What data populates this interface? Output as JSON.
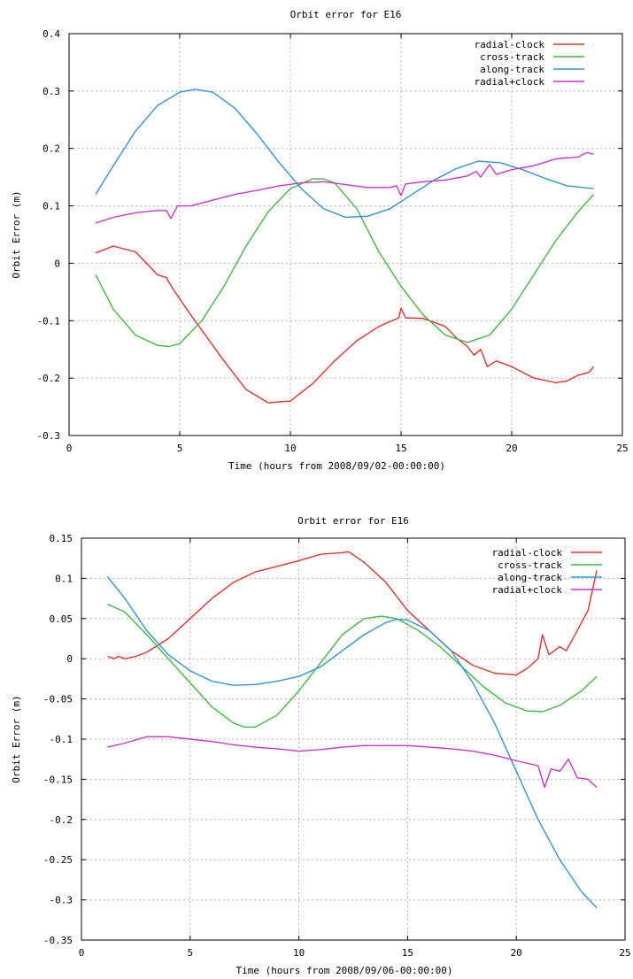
{
  "colors": {
    "radial_clock": "#e8302a",
    "cross_track": "#3dbb3d",
    "along_track": "#2f93e0",
    "radial_plus_clock": "#cc33cc"
  },
  "chart_data": [
    {
      "type": "line",
      "title": "Orbit error for E16",
      "xlabel": "Time (hours from 2008/09/02-00:00:00)",
      "ylabel": "Orbit Error (m)",
      "xlim": [
        0,
        25
      ],
      "ylim": [
        -0.3,
        0.4
      ],
      "xticks": [
        0,
        5,
        10,
        15,
        20,
        25
      ],
      "xtick_labels": [
        "0",
        "5",
        "10",
        "15",
        "20",
        "25"
      ],
      "yticks": [
        -0.3,
        -0.2,
        -0.1,
        0,
        0.1,
        0.2,
        0.3,
        0.4
      ],
      "ytick_labels": [
        "-0.3",
        "-0.2",
        "-0.1",
        "0",
        "0.1",
        "0.2",
        "0.3",
        "0.4"
      ],
      "grid": true,
      "legend_position": "top-right",
      "series": [
        {
          "name": "radial-clock",
          "color_key": "radial_clock",
          "points": [
            [
              1.2,
              0.018
            ],
            [
              2,
              0.03
            ],
            [
              3,
              0.02
            ],
            [
              3.5,
              0.0
            ],
            [
              4,
              -0.02
            ],
            [
              4.4,
              -0.025
            ],
            [
              4.7,
              -0.045
            ],
            [
              5.5,
              -0.09
            ],
            [
              7,
              -0.17
            ],
            [
              8,
              -0.22
            ],
            [
              9,
              -0.243
            ],
            [
              10,
              -0.24
            ],
            [
              11,
              -0.21
            ],
            [
              12,
              -0.17
            ],
            [
              13,
              -0.135
            ],
            [
              14,
              -0.11
            ],
            [
              14.9,
              -0.095
            ],
            [
              15,
              -0.078
            ],
            [
              15.2,
              -0.095
            ],
            [
              16,
              -0.096
            ],
            [
              17,
              -0.11
            ],
            [
              17.5,
              -0.13
            ],
            [
              18,
              -0.145
            ],
            [
              18.3,
              -0.16
            ],
            [
              18.6,
              -0.15
            ],
            [
              18.9,
              -0.18
            ],
            [
              19.3,
              -0.17
            ],
            [
              20,
              -0.18
            ],
            [
              21,
              -0.2
            ],
            [
              22,
              -0.208
            ],
            [
              22.5,
              -0.205
            ],
            [
              23,
              -0.195
            ],
            [
              23.5,
              -0.19
            ],
            [
              23.7,
              -0.18
            ]
          ]
        },
        {
          "name": "cross-track",
          "color_key": "cross_track",
          "points": [
            [
              1.2,
              -0.02
            ],
            [
              2,
              -0.08
            ],
            [
              3,
              -0.125
            ],
            [
              4,
              -0.143
            ],
            [
              4.5,
              -0.145
            ],
            [
              5,
              -0.14
            ],
            [
              6,
              -0.1
            ],
            [
              7,
              -0.04
            ],
            [
              8,
              0.03
            ],
            [
              9,
              0.09
            ],
            [
              10,
              0.13
            ],
            [
              11,
              0.147
            ],
            [
              11.5,
              0.147
            ],
            [
              12,
              0.14
            ],
            [
              13,
              0.095
            ],
            [
              14,
              0.02
            ],
            [
              15,
              -0.04
            ],
            [
              16,
              -0.09
            ],
            [
              17,
              -0.125
            ],
            [
              18,
              -0.138
            ],
            [
              19,
              -0.125
            ],
            [
              20,
              -0.08
            ],
            [
              21,
              -0.02
            ],
            [
              22,
              0.04
            ],
            [
              23,
              0.09
            ],
            [
              23.7,
              0.12
            ]
          ]
        },
        {
          "name": "along-track",
          "color_key": "along_track",
          "points": [
            [
              1.2,
              0.12
            ],
            [
              2,
              0.17
            ],
            [
              3,
              0.23
            ],
            [
              4,
              0.275
            ],
            [
              5,
              0.298
            ],
            [
              5.7,
              0.303
            ],
            [
              6.5,
              0.298
            ],
            [
              7.5,
              0.27
            ],
            [
              8.5,
              0.225
            ],
            [
              9.5,
              0.175
            ],
            [
              10.5,
              0.13
            ],
            [
              11.5,
              0.095
            ],
            [
              12.5,
              0.08
            ],
            [
              13.5,
              0.082
            ],
            [
              14.5,
              0.095
            ],
            [
              15.5,
              0.12
            ],
            [
              16.5,
              0.145
            ],
            [
              17.5,
              0.165
            ],
            [
              18.5,
              0.178
            ],
            [
              19.5,
              0.175
            ],
            [
              20.5,
              0.163
            ],
            [
              21.5,
              0.148
            ],
            [
              22.5,
              0.135
            ],
            [
              23.7,
              0.13
            ]
          ]
        },
        {
          "name": "radial+clock",
          "color_key": "radial_plus_clock",
          "points": [
            [
              1.2,
              0.07
            ],
            [
              2,
              0.08
            ],
            [
              3,
              0.088
            ],
            [
              4,
              0.092
            ],
            [
              4.4,
              0.092
            ],
            [
              4.6,
              0.078
            ],
            [
              4.9,
              0.1
            ],
            [
              5.5,
              0.1
            ],
            [
              6.5,
              0.11
            ],
            [
              7.5,
              0.12
            ],
            [
              8.5,
              0.127
            ],
            [
              9.5,
              0.135
            ],
            [
              10.5,
              0.14
            ],
            [
              11.5,
              0.142
            ],
            [
              12.5,
              0.137
            ],
            [
              13.5,
              0.132
            ],
            [
              14.5,
              0.132
            ],
            [
              14.8,
              0.135
            ],
            [
              15,
              0.118
            ],
            [
              15.2,
              0.138
            ],
            [
              16,
              0.142
            ],
            [
              17,
              0.145
            ],
            [
              18,
              0.152
            ],
            [
              18.4,
              0.16
            ],
            [
              18.6,
              0.15
            ],
            [
              19,
              0.172
            ],
            [
              19.3,
              0.155
            ],
            [
              20,
              0.163
            ],
            [
              21,
              0.17
            ],
            [
              22,
              0.182
            ],
            [
              23,
              0.185
            ],
            [
              23.4,
              0.193
            ],
            [
              23.7,
              0.19
            ]
          ]
        }
      ]
    },
    {
      "type": "line",
      "title": "Orbit error for E16",
      "xlabel": "Time (hours from 2008/09/06-00:00:00)",
      "ylabel": "Orbit Error (m)",
      "xlim": [
        0,
        25
      ],
      "ylim": [
        -0.35,
        0.15
      ],
      "xticks": [
        0,
        5,
        10,
        15,
        20,
        25
      ],
      "xtick_labels": [
        "0",
        "5",
        "10",
        "15",
        "20",
        "25"
      ],
      "yticks": [
        -0.35,
        -0.3,
        -0.25,
        -0.2,
        -0.15,
        -0.1,
        -0.05,
        0,
        0.05,
        0.1,
        0.15
      ],
      "ytick_labels": [
        "-0.35",
        "-0.3",
        "-0.25",
        "-0.2",
        "-0.15",
        "-0.1",
        "-0.05",
        "0",
        "0.05",
        "0.1",
        "0.15"
      ],
      "grid": true,
      "legend_position": "top-right",
      "series": [
        {
          "name": "radial-clock",
          "color_key": "radial_clock",
          "points": [
            [
              1.2,
              0.003
            ],
            [
              1.5,
              0.0
            ],
            [
              1.7,
              0.003
            ],
            [
              2,
              0.0
            ],
            [
              2.5,
              0.003
            ],
            [
              3,
              0.008
            ],
            [
              4,
              0.025
            ],
            [
              5,
              0.05
            ],
            [
              6,
              0.075
            ],
            [
              7,
              0.095
            ],
            [
              8,
              0.108
            ],
            [
              9,
              0.115
            ],
            [
              10,
              0.122
            ],
            [
              11,
              0.13
            ],
            [
              12,
              0.132
            ],
            [
              12.3,
              0.133
            ],
            [
              13,
              0.12
            ],
            [
              14,
              0.095
            ],
            [
              15,
              0.06
            ],
            [
              16,
              0.035
            ],
            [
              17,
              0.01
            ],
            [
              18,
              -0.008
            ],
            [
              19,
              -0.018
            ],
            [
              20,
              -0.02
            ],
            [
              20.5,
              -0.012
            ],
            [
              21,
              0.0
            ],
            [
              21.2,
              0.03
            ],
            [
              21.5,
              0.005
            ],
            [
              22,
              0.015
            ],
            [
              22.3,
              0.01
            ],
            [
              22.8,
              0.035
            ],
            [
              23.3,
              0.06
            ],
            [
              23.7,
              0.11
            ]
          ]
        },
        {
          "name": "cross-track",
          "color_key": "cross_track",
          "points": [
            [
              1.2,
              0.068
            ],
            [
              2,
              0.058
            ],
            [
              3,
              0.03
            ],
            [
              4,
              0.0
            ],
            [
              5,
              -0.03
            ],
            [
              6,
              -0.06
            ],
            [
              7,
              -0.08
            ],
            [
              7.5,
              -0.085
            ],
            [
              8,
              -0.085
            ],
            [
              9,
              -0.07
            ],
            [
              10,
              -0.04
            ],
            [
              11,
              -0.005
            ],
            [
              12,
              0.03
            ],
            [
              13,
              0.05
            ],
            [
              13.8,
              0.053
            ],
            [
              14.5,
              0.05
            ],
            [
              15.5,
              0.035
            ],
            [
              16.5,
              0.015
            ],
            [
              17.5,
              -0.01
            ],
            [
              18.5,
              -0.035
            ],
            [
              19.5,
              -0.055
            ],
            [
              20.5,
              -0.065
            ],
            [
              21.2,
              -0.066
            ],
            [
              22,
              -0.058
            ],
            [
              23,
              -0.04
            ],
            [
              23.7,
              -0.022
            ]
          ]
        },
        {
          "name": "along-track",
          "color_key": "along_track",
          "points": [
            [
              1.2,
              0.102
            ],
            [
              2,
              0.075
            ],
            [
              3,
              0.035
            ],
            [
              4,
              0.005
            ],
            [
              5,
              -0.015
            ],
            [
              6,
              -0.028
            ],
            [
              7,
              -0.033
            ],
            [
              8,
              -0.032
            ],
            [
              9,
              -0.028
            ],
            [
              10,
              -0.022
            ],
            [
              11,
              -0.01
            ],
            [
              12,
              0.01
            ],
            [
              13,
              0.03
            ],
            [
              14,
              0.045
            ],
            [
              14.5,
              0.049
            ],
            [
              15,
              0.048
            ],
            [
              16,
              0.035
            ],
            [
              17,
              0.01
            ],
            [
              18,
              -0.03
            ],
            [
              19,
              -0.08
            ],
            [
              20,
              -0.14
            ],
            [
              21,
              -0.2
            ],
            [
              22,
              -0.25
            ],
            [
              23,
              -0.29
            ],
            [
              23.7,
              -0.31
            ]
          ]
        },
        {
          "name": "radial+clock",
          "color_key": "radial_plus_clock",
          "points": [
            [
              1.2,
              -0.11
            ],
            [
              2,
              -0.105
            ],
            [
              3,
              -0.097
            ],
            [
              4,
              -0.097
            ],
            [
              5,
              -0.1
            ],
            [
              6,
              -0.103
            ],
            [
              7,
              -0.107
            ],
            [
              8,
              -0.11
            ],
            [
              9,
              -0.112
            ],
            [
              10,
              -0.115
            ],
            [
              11,
              -0.113
            ],
            [
              12,
              -0.11
            ],
            [
              13,
              -0.108
            ],
            [
              14,
              -0.108
            ],
            [
              15,
              -0.108
            ],
            [
              16,
              -0.11
            ],
            [
              17,
              -0.112
            ],
            [
              18,
              -0.115
            ],
            [
              19,
              -0.12
            ],
            [
              20,
              -0.127
            ],
            [
              21,
              -0.133
            ],
            [
              21.3,
              -0.16
            ],
            [
              21.6,
              -0.137
            ],
            [
              22,
              -0.14
            ],
            [
              22.4,
              -0.125
            ],
            [
              22.8,
              -0.148
            ],
            [
              23.3,
              -0.15
            ],
            [
              23.7,
              -0.16
            ]
          ]
        }
      ]
    }
  ]
}
